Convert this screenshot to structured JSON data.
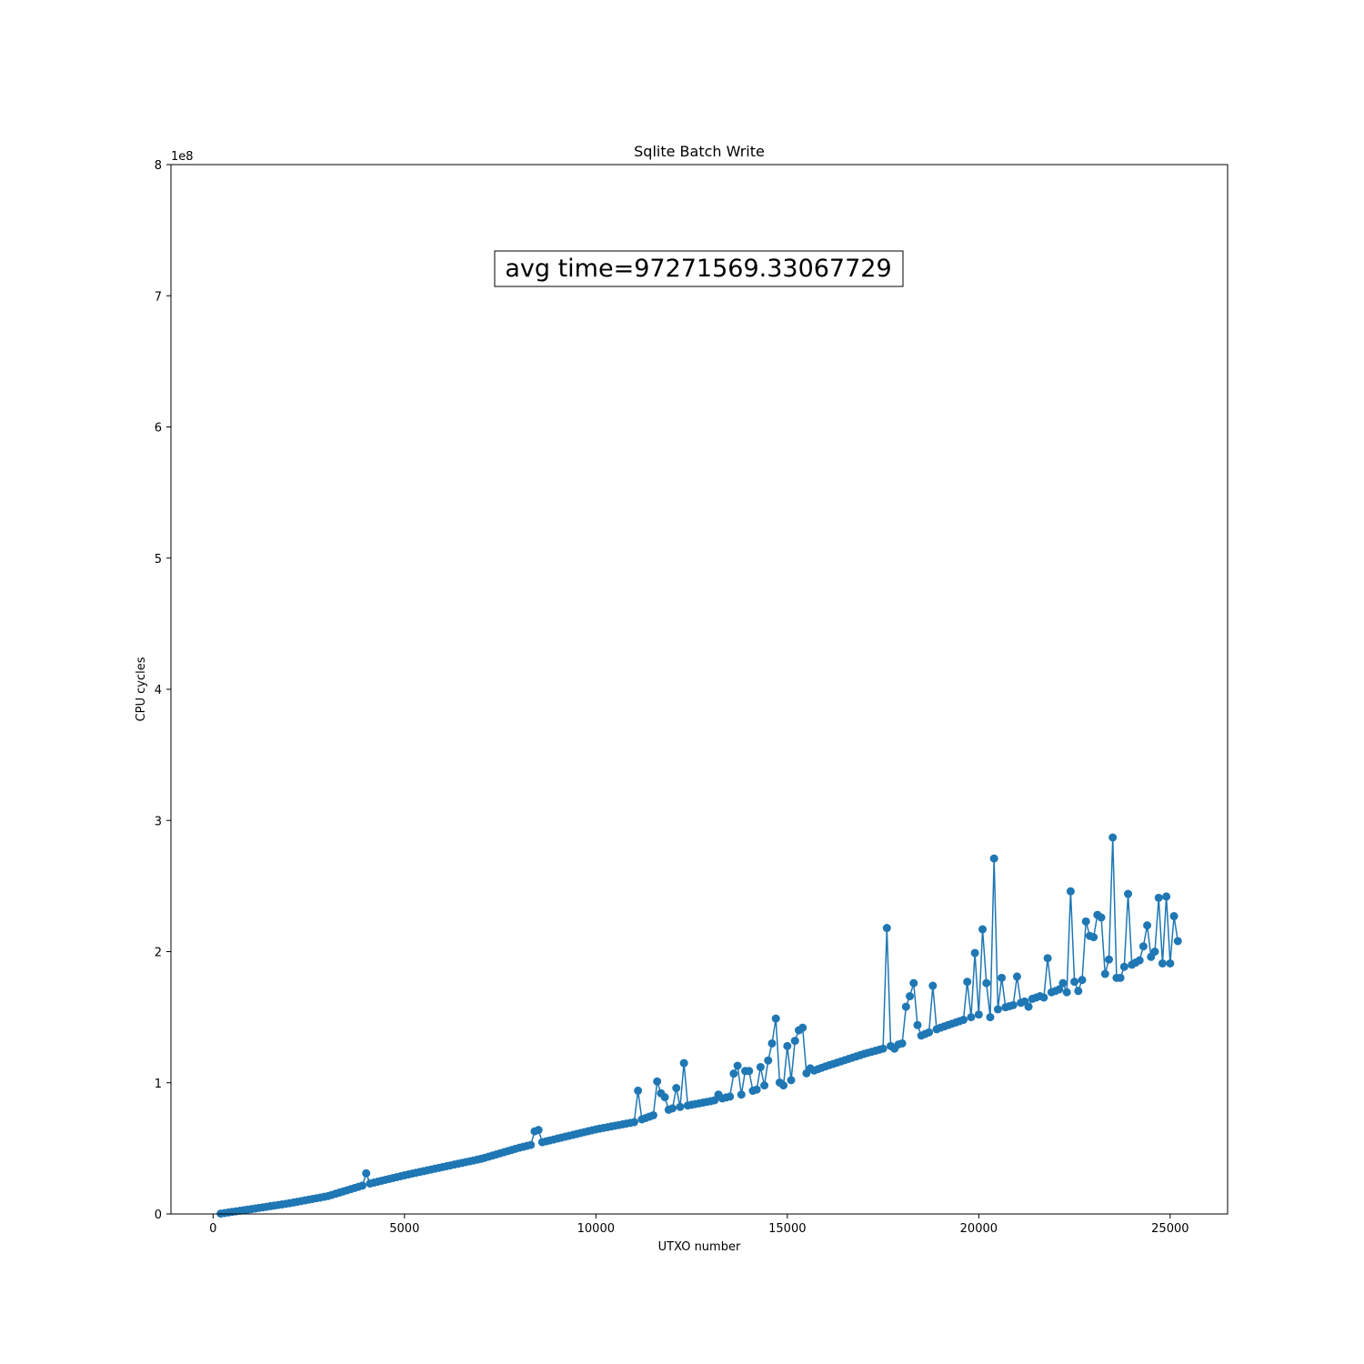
{
  "chart_data": {
    "type": "line",
    "title": "Sqlite Batch Write",
    "xlabel": "UTXO number",
    "ylabel": "CPU cycles",
    "y_multiplier_label": "1e8",
    "xlim": [
      -1100,
      26500
    ],
    "ylim": [
      0,
      800000000
    ],
    "x_ticks": [
      0,
      5000,
      10000,
      15000,
      20000,
      25000
    ],
    "x_tick_labels": [
      "0",
      "5000",
      "10000",
      "15000",
      "20000",
      "25000"
    ],
    "y_ticks": [
      0,
      100000000,
      200000000,
      300000000,
      400000000,
      500000000,
      600000000,
      700000000,
      800000000
    ],
    "y_tick_labels": [
      "0",
      "1",
      "2",
      "3",
      "4",
      "5",
      "6",
      "7",
      "8"
    ],
    "grid": false,
    "legend": "none",
    "annotation": "avg time=97271569.33067729",
    "series_color": "#1f77b4",
    "series": [
      {
        "marker": "circle",
        "x_start": 200,
        "x_step": 100,
        "anchors": [
          [
            200,
            0.3
          ],
          [
            1000,
            3.7
          ],
          [
            2000,
            8.2
          ],
          [
            3000,
            13.6
          ],
          [
            4000,
            22.5
          ],
          [
            5000,
            29.5
          ],
          [
            6000,
            35.8
          ],
          [
            7000,
            42.0
          ],
          [
            8000,
            50.5
          ],
          [
            9000,
            57.5
          ],
          [
            10000,
            64.5
          ],
          [
            11000,
            70.0
          ],
          [
            12000,
            80.5
          ],
          [
            13000,
            86.0
          ],
          [
            14000,
            93.0
          ],
          [
            15000,
            102.0
          ],
          [
            16000,
            112.5
          ],
          [
            17000,
            122.0
          ],
          [
            18000,
            130.0
          ],
          [
            19000,
            142.0
          ],
          [
            20000,
            152.0
          ],
          [
            21000,
            160.0
          ],
          [
            22000,
            170.0
          ],
          [
            23000,
            182.0
          ],
          [
            24000,
            190.0
          ],
          [
            25200,
            210.0
          ]
        ],
        "y_unit": 1000000,
        "spikes": [
          [
            4000,
            31
          ],
          [
            8400,
            63
          ],
          [
            8500,
            64
          ],
          [
            11100,
            94
          ],
          [
            11600,
            101
          ],
          [
            11700,
            92
          ],
          [
            11800,
            89
          ],
          [
            12100,
            96
          ],
          [
            12300,
            115
          ],
          [
            13200,
            91
          ],
          [
            13600,
            107
          ],
          [
            13700,
            113
          ],
          [
            13800,
            91
          ],
          [
            13900,
            109
          ],
          [
            14000,
            109
          ],
          [
            14300,
            112
          ],
          [
            14500,
            117
          ],
          [
            14600,
            130
          ],
          [
            14700,
            149
          ],
          [
            15000,
            128
          ],
          [
            15100,
            102
          ],
          [
            15200,
            132
          ],
          [
            15300,
            140
          ],
          [
            15400,
            142
          ],
          [
            17600,
            218
          ],
          [
            18100,
            158
          ],
          [
            18200,
            166
          ],
          [
            18300,
            176
          ],
          [
            18400,
            144
          ],
          [
            18800,
            174
          ],
          [
            19700,
            177
          ],
          [
            19900,
            199
          ],
          [
            20100,
            217
          ],
          [
            20200,
            176
          ],
          [
            20400,
            271
          ],
          [
            20600,
            180
          ],
          [
            21000,
            181
          ],
          [
            21700,
            165
          ],
          [
            21800,
            195
          ],
          [
            22200,
            176
          ],
          [
            22400,
            246
          ],
          [
            22500,
            177
          ],
          [
            22800,
            223
          ],
          [
            22900,
            212
          ],
          [
            23000,
            211
          ],
          [
            23100,
            228
          ],
          [
            23200,
            226
          ],
          [
            23400,
            194
          ],
          [
            23500,
            287
          ],
          [
            23900,
            244
          ],
          [
            24300,
            204
          ],
          [
            24400,
            220
          ],
          [
            24500,
            196
          ],
          [
            24700,
            241
          ],
          [
            24900,
            242
          ],
          [
            25100,
            227
          ],
          [
            25200,
            208
          ]
        ],
        "dips": [
          [
            20300,
            150
          ],
          [
            21300,
            158
          ],
          [
            22300,
            169
          ],
          [
            22600,
            170
          ],
          [
            23300,
            183
          ],
          [
            23600,
            180
          ],
          [
            23700,
            180
          ],
          [
            24800,
            191
          ],
          [
            25000,
            191
          ],
          [
            14400,
            98
          ],
          [
            14900,
            98
          ],
          [
            15600,
            111
          ],
          [
            17700,
            128
          ],
          [
            17800,
            126
          ]
        ]
      }
    ]
  }
}
